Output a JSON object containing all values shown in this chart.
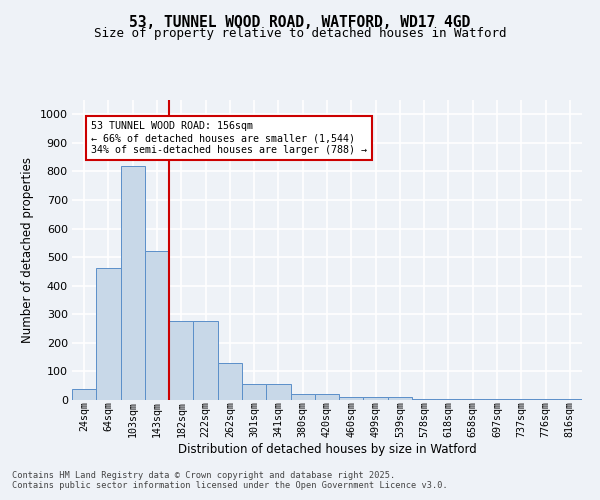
{
  "title_line1": "53, TUNNEL WOOD ROAD, WATFORD, WD17 4GD",
  "title_line2": "Size of property relative to detached houses in Watford",
  "xlabel": "Distribution of detached houses by size in Watford",
  "ylabel": "Number of detached properties",
  "bar_color": "#c8d8e8",
  "bar_edge_color": "#5b8fc9",
  "marker_line_color": "#cc0000",
  "marker_bin_index": 3,
  "annotation_text": "53 TUNNEL WOOD ROAD: 156sqm\n← 66% of detached houses are smaller (1,544)\n34% of semi-detached houses are larger (788) →",
  "annotation_box_color": "#ffffff",
  "annotation_box_edge": "#cc0000",
  "categories": [
    "24sqm",
    "64sqm",
    "103sqm",
    "143sqm",
    "182sqm",
    "222sqm",
    "262sqm",
    "301sqm",
    "341sqm",
    "380sqm",
    "420sqm",
    "460sqm",
    "499sqm",
    "539sqm",
    "578sqm",
    "618sqm",
    "658sqm",
    "697sqm",
    "737sqm",
    "776sqm",
    "816sqm"
  ],
  "values": [
    40,
    463,
    820,
    520,
    275,
    275,
    130,
    55,
    55,
    20,
    20,
    10,
    10,
    10,
    5,
    5,
    5,
    5,
    5,
    5,
    5
  ],
  "ylim": [
    0,
    1050
  ],
  "yticks": [
    0,
    100,
    200,
    300,
    400,
    500,
    600,
    700,
    800,
    900,
    1000
  ],
  "background_color": "#eef2f7",
  "grid_color": "#ffffff",
  "footer_text": "Contains HM Land Registry data © Crown copyright and database right 2025.\nContains public sector information licensed under the Open Government Licence v3.0.",
  "fig_width": 6.0,
  "fig_height": 5.0,
  "title_fontsize": 10.5,
  "subtitle_fontsize": 9,
  "bar_width": 1.0
}
